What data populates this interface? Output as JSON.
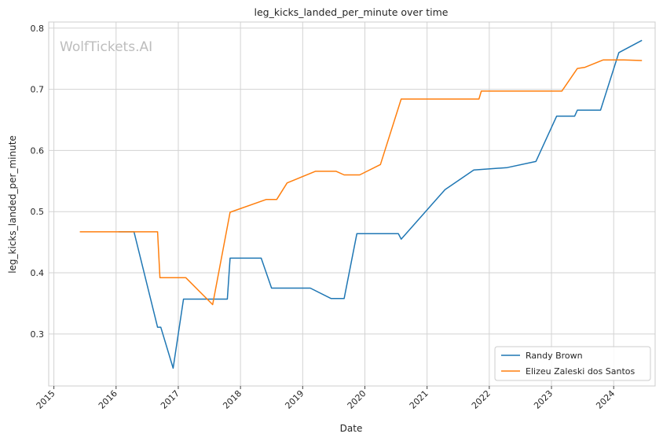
{
  "chart_data": {
    "type": "line",
    "title": "leg_kicks_landed_per_minute over time",
    "xlabel": "Date",
    "ylabel": "leg_kicks_landed_per_minute",
    "watermark": "WolfTickets.AI",
    "xlim": [
      "2014-12-01",
      "2024-09-01"
    ],
    "ylim": [
      0.215,
      0.81
    ],
    "x_ticks": [
      "2015",
      "2016",
      "2017",
      "2018",
      "2019",
      "2020",
      "2021",
      "2022",
      "2023",
      "2024"
    ],
    "y_ticks": [
      "0.3",
      "0.4",
      "0.5",
      "0.6",
      "0.7",
      "0.8"
    ],
    "grid": true,
    "legend_position": "bottom-right",
    "series": [
      {
        "name": "Randy Brown",
        "color": "#1f77b4",
        "points": [
          [
            "2016-01-15",
            0.467
          ],
          [
            "2016-04-15",
            0.467
          ],
          [
            "2016-09-01",
            0.311
          ],
          [
            "2016-09-20",
            0.311
          ],
          [
            "2016-12-01",
            0.244
          ],
          [
            "2017-02-01",
            0.357
          ],
          [
            "2017-10-15",
            0.357
          ],
          [
            "2017-11-01",
            0.424
          ],
          [
            "2018-05-01",
            0.424
          ],
          [
            "2018-07-01",
            0.375
          ],
          [
            "2019-02-15",
            0.375
          ],
          [
            "2019-06-15",
            0.358
          ],
          [
            "2019-09-01",
            0.358
          ],
          [
            "2019-11-15",
            0.464
          ],
          [
            "2020-07-15",
            0.464
          ],
          [
            "2020-08-01",
            0.455
          ],
          [
            "2021-04-15",
            0.536
          ],
          [
            "2021-10-01",
            0.568
          ],
          [
            "2022-04-15",
            0.572
          ],
          [
            "2022-10-01",
            0.582
          ],
          [
            "2023-02-01",
            0.656
          ],
          [
            "2023-05-15",
            0.656
          ],
          [
            "2023-06-01",
            0.666
          ],
          [
            "2023-10-15",
            0.666
          ],
          [
            "2024-02-01",
            0.76
          ],
          [
            "2024-06-15",
            0.78
          ]
        ]
      },
      {
        "name": "Elizeu Zaleski dos Santos",
        "color": "#ff7f0e",
        "points": [
          [
            "2015-06-01",
            0.467
          ],
          [
            "2016-09-01",
            0.467
          ],
          [
            "2016-09-15",
            0.392
          ],
          [
            "2017-02-15",
            0.392
          ],
          [
            "2017-07-20",
            0.348
          ],
          [
            "2017-11-01",
            0.499
          ],
          [
            "2018-06-01",
            0.52
          ],
          [
            "2018-08-01",
            0.52
          ],
          [
            "2018-10-01",
            0.547
          ],
          [
            "2019-03-15",
            0.566
          ],
          [
            "2019-07-15",
            0.566
          ],
          [
            "2019-09-01",
            0.56
          ],
          [
            "2019-12-01",
            0.56
          ],
          [
            "2020-04-01",
            0.577
          ],
          [
            "2020-08-01",
            0.684
          ],
          [
            "2021-11-01",
            0.684
          ],
          [
            "2021-11-15",
            0.697
          ],
          [
            "2023-03-01",
            0.697
          ],
          [
            "2023-06-01",
            0.734
          ],
          [
            "2023-07-15",
            0.736
          ],
          [
            "2023-11-01",
            0.748
          ],
          [
            "2024-03-01",
            0.748
          ],
          [
            "2024-06-15",
            0.747
          ]
        ]
      }
    ]
  }
}
